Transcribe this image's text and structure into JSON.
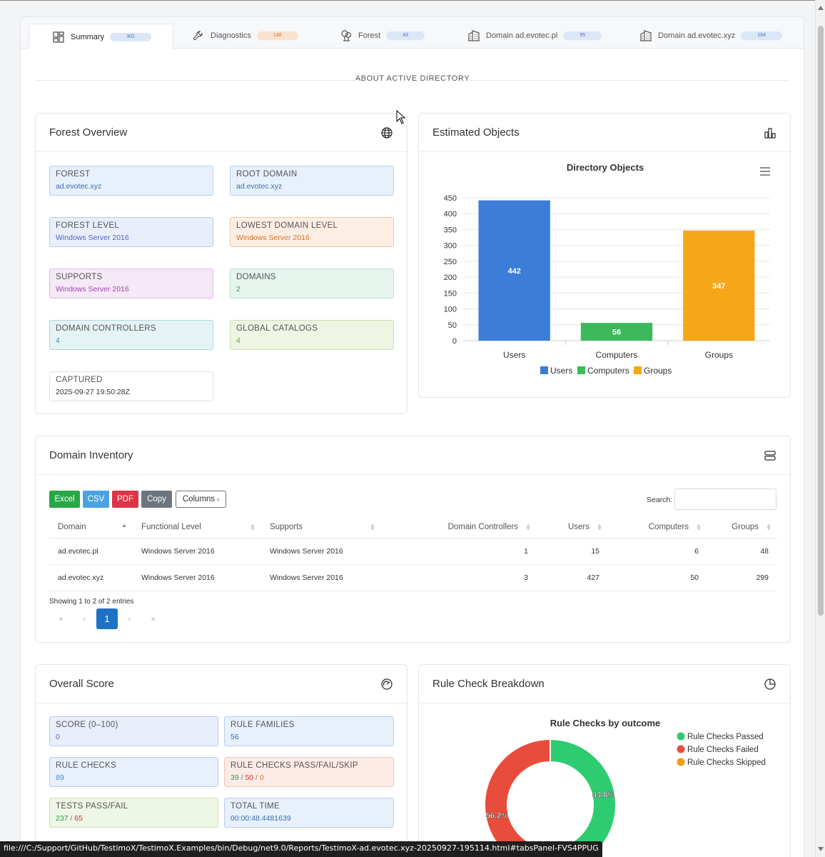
{
  "tabs": [
    {
      "label": "Summary",
      "count": "302",
      "pill": "blue",
      "icon": "dashboard-icon"
    },
    {
      "label": "Diagnostics",
      "count": "148",
      "pill": "orange",
      "icon": "wrench-icon"
    },
    {
      "label": "Forest",
      "count": "43",
      "pill": "blue",
      "icon": "tree-icon"
    },
    {
      "label": "Domain ad.evotec.pl",
      "count": "95",
      "pill": "blue",
      "icon": "building-icon"
    },
    {
      "label": "Domain ad.evotec.xyz",
      "count": "164",
      "pill": "blue",
      "icon": "building-icon"
    }
  ],
  "section_title": "ABOUT ACTIVE DIRECTORY",
  "forest_overview": {
    "title": "Forest Overview",
    "items": [
      {
        "key": "FOREST",
        "value": "ad.evotec.xyz",
        "color": "blue"
      },
      {
        "key": "ROOT DOMAIN",
        "value": "ad.evotec.xyz",
        "color": "blue"
      },
      {
        "key": "FOREST LEVEL",
        "value": "Windows Server 2016",
        "color": "indigo"
      },
      {
        "key": "LOWEST DOMAIN LEVEL",
        "value": "Windows Server 2016",
        "color": "orange"
      },
      {
        "key": "SUPPORTS",
        "value": "Windows Server 2016",
        "color": "purple"
      },
      {
        "key": "DOMAINS",
        "value": "2",
        "color": "green"
      },
      {
        "key": "DOMAIN CONTROLLERS",
        "value": "4",
        "color": "teal"
      },
      {
        "key": "GLOBAL CATALOGS",
        "value": "4",
        "color": "olive"
      },
      {
        "key": "CAPTURED",
        "value": "2025-09-27 19:50:28Z",
        "color": "white"
      }
    ]
  },
  "estimated_objects": {
    "title": "Estimated Objects",
    "menu_icon": "hamburger-menu-icon"
  },
  "chart_data": {
    "type": "bar",
    "title": "Directory Objects",
    "categories": [
      "Users",
      "Computers",
      "Groups"
    ],
    "values": [
      442,
      56,
      347
    ],
    "colors": [
      "#3b7dd8",
      "#3cb95b",
      "#f5a718"
    ],
    "ylim": [
      0,
      450
    ],
    "yticks": [
      0,
      50,
      100,
      150,
      200,
      250,
      300,
      350,
      400,
      450
    ],
    "legend": [
      "Users",
      "Computers",
      "Groups"
    ],
    "legend_position": "bottom",
    "xlabel": "",
    "ylabel": ""
  },
  "domain_inventory": {
    "title": "Domain Inventory",
    "buttons": {
      "excel": "Excel",
      "csv": "CSV",
      "pdf": "PDF",
      "copy": "Copy",
      "columns": "Columns"
    },
    "search_label": "Search:",
    "search_value": "",
    "columns": [
      "Domain",
      "Functional Level",
      "Supports",
      "Domain Controllers",
      "Users",
      "Computers",
      "Groups"
    ],
    "rows": [
      [
        "ad.evotec.pl",
        "Windows Server 2016",
        "Windows Server 2016",
        "1",
        "15",
        "6",
        "48"
      ],
      [
        "ad.evotec.xyz",
        "Windows Server 2016",
        "Windows Server 2016",
        "3",
        "427",
        "50",
        "299"
      ]
    ],
    "info": "Showing 1 to 2 of 2 entries",
    "pager": {
      "first": "«",
      "prev": "‹",
      "current": "1",
      "next": "›",
      "last": "»"
    }
  },
  "overall_score": {
    "title": "Overall Score",
    "score_key": "SCORE (0–100)",
    "score_value": "0",
    "families_key": "RULE FAMILIES",
    "families_value": "56",
    "checks_key": "RULE CHECKS",
    "checks_value": "89",
    "pfs_key": "RULE CHECKS PASS/FAIL/SKIP",
    "pass": "39",
    "fail": "50",
    "skip": "0",
    "tests_key": "TESTS PASS/FAIL",
    "tests_pass": "237",
    "tests_fail": "65",
    "time_key": "TOTAL TIME",
    "time_value": "00:00:48.4481639",
    "sep": " / "
  },
  "rule_check_breakdown": {
    "title": "Rule Check Breakdown",
    "chart_title": "Rule Checks by outcome",
    "legend": [
      "Rule Checks Passed",
      "Rule Checks Failed",
      "Rule Checks Skipped"
    ],
    "colors": [
      "#2ecc71",
      "#e74c3c",
      "#f39c12"
    ],
    "slices": [
      39,
      50,
      0
    ],
    "labels": [
      "43.8%",
      "56.2%"
    ]
  },
  "status_url": "file:///C:/Support/GitHub/TestimoX/TestimoX.Examples/bin/Debug/net9.0/Reports/TestimoX-ad.evotec.xyz-20250927-195114.html#tabsPanel-FVS4PPUG"
}
